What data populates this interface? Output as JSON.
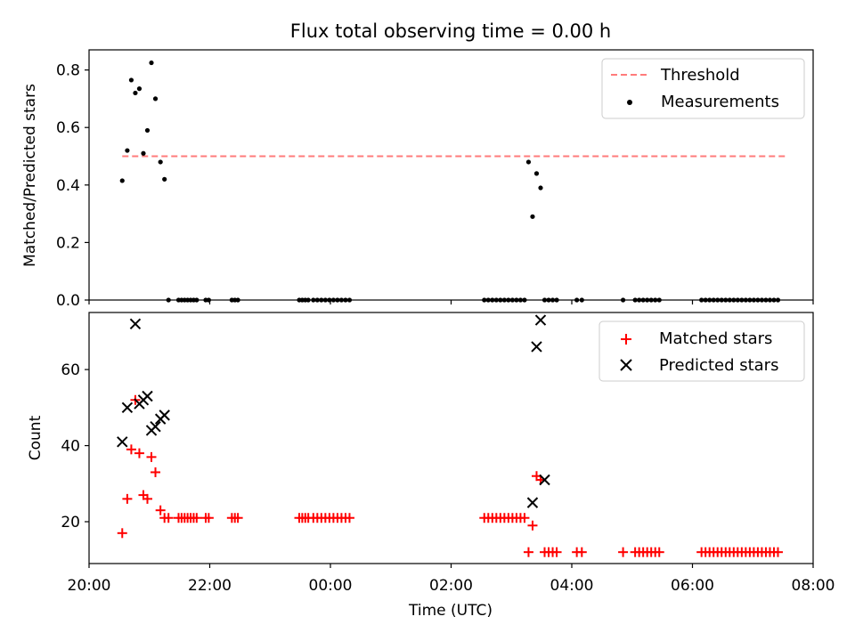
{
  "title": "Flux total observing time = 0.00 h",
  "chart_data": [
    {
      "type": "scatter",
      "ylabel": "Matched/Predicted stars",
      "xlim": [
        "20:00",
        "08:00"
      ],
      "ylim": [
        0,
        0.87
      ],
      "yticks": [
        0.0,
        0.2,
        0.4,
        0.6,
        0.8
      ],
      "ytick_labels": [
        "0.0",
        "0.2",
        "0.4",
        "0.6",
        "0.8"
      ],
      "legend": {
        "position": "top-right",
        "entries": [
          "Threshold",
          "Measurements"
        ]
      },
      "threshold": {
        "name": "Threshold",
        "value": 0.5,
        "x_start": "20:33",
        "x_end": "07:33",
        "color": "#ff7b7b"
      },
      "series": [
        {
          "name": "Measurements",
          "color": "#000000",
          "x": [
            "20:33",
            "20:38",
            "20:42",
            "20:46",
            "20:50",
            "20:54",
            "20:58",
            "21:02",
            "21:06",
            "21:11",
            "21:15",
            "21:19",
            "21:29",
            "21:32",
            "21:35",
            "21:38",
            "21:41",
            "21:44",
            "21:47",
            "21:56",
            "21:59",
            "22:22",
            "22:25",
            "22:28",
            "23:29",
            "23:32",
            "23:35",
            "23:38",
            "23:43",
            "23:47",
            "23:51",
            "23:55",
            "23:59",
            "00:03",
            "00:07",
            "00:11",
            "00:15",
            "00:19",
            "02:33",
            "02:37",
            "02:41",
            "02:45",
            "02:49",
            "02:53",
            "02:57",
            "03:01",
            "03:05",
            "03:09",
            "03:13",
            "03:17",
            "03:21",
            "03:25",
            "03:29",
            "03:33",
            "03:37",
            "03:41",
            "03:45",
            "04:05",
            "04:10",
            "04:51",
            "05:03",
            "05:07",
            "05:11",
            "05:15",
            "05:19",
            "05:23",
            "05:27",
            "06:09",
            "06:13",
            "06:17",
            "06:21",
            "06:25",
            "06:29",
            "06:33",
            "06:37",
            "06:41",
            "06:45",
            "06:49",
            "06:53",
            "06:57",
            "07:01",
            "07:05",
            "07:09",
            "07:13",
            "07:17",
            "07:21",
            "07:25"
          ],
          "y": [
            0.415,
            0.52,
            0.765,
            0.72,
            0.735,
            0.51,
            0.59,
            0.825,
            0.7,
            0.48,
            0.42,
            0,
            0,
            0,
            0,
            0,
            0,
            0,
            0,
            0,
            0,
            0,
            0,
            0,
            0,
            0,
            0,
            0,
            0,
            0,
            0,
            0,
            0,
            0,
            0,
            0,
            0,
            0,
            0,
            0,
            0,
            0,
            0,
            0,
            0,
            0,
            0,
            0,
            0,
            0.48,
            0.29,
            0.44,
            0.39,
            0,
            0,
            0,
            0,
            0,
            0,
            0,
            0,
            0,
            0,
            0,
            0,
            0,
            0,
            0,
            0,
            0,
            0,
            0,
            0,
            0,
            0,
            0,
            0,
            0,
            0,
            0,
            0,
            0,
            0,
            0,
            0,
            0,
            0
          ]
        }
      ]
    },
    {
      "type": "scatter",
      "xlabel": "Time (UTC)",
      "ylabel": "Count",
      "xlim": [
        "20:00",
        "08:00"
      ],
      "ylim": [
        9,
        75
      ],
      "yticks": [
        20,
        40,
        60
      ],
      "ytick_labels": [
        "20",
        "40",
        "60"
      ],
      "xticks": [
        "20:00",
        "22:00",
        "00:00",
        "02:00",
        "04:00",
        "06:00",
        "08:00"
      ],
      "legend": {
        "position": "top-right",
        "entries": [
          "Matched stars",
          "Predicted stars"
        ]
      },
      "series": [
        {
          "name": "Matched stars",
          "marker": "plus",
          "color": "#ff0000",
          "x": [
            "20:33",
            "20:38",
            "20:42",
            "20:46",
            "20:50",
            "20:54",
            "20:58",
            "21:02",
            "21:06",
            "21:11",
            "21:15",
            "21:19",
            "21:29",
            "21:32",
            "21:35",
            "21:38",
            "21:41",
            "21:44",
            "21:47",
            "21:56",
            "21:59",
            "22:22",
            "22:25",
            "22:28",
            "23:29",
            "23:32",
            "23:35",
            "23:38",
            "23:43",
            "23:47",
            "23:51",
            "23:55",
            "23:59",
            "00:03",
            "00:07",
            "00:11",
            "00:15",
            "00:19",
            "02:33",
            "02:37",
            "02:41",
            "02:45",
            "02:49",
            "02:53",
            "02:57",
            "03:01",
            "03:05",
            "03:09",
            "03:13",
            "03:17",
            "03:21",
            "03:25",
            "03:29",
            "03:33",
            "03:37",
            "03:41",
            "03:45",
            "04:05",
            "04:10",
            "04:51",
            "05:03",
            "05:07",
            "05:11",
            "05:15",
            "05:19",
            "05:23",
            "05:27",
            "06:09",
            "06:13",
            "06:17",
            "06:21",
            "06:25",
            "06:29",
            "06:33",
            "06:37",
            "06:41",
            "06:45",
            "06:49",
            "06:53",
            "06:57",
            "07:01",
            "07:05",
            "07:09",
            "07:13",
            "07:17",
            "07:21",
            "07:25"
          ],
          "y": [
            17,
            26,
            39,
            52,
            38,
            27,
            26,
            37,
            33,
            23,
            21,
            21,
            21,
            21,
            21,
            21,
            21,
            21,
            21,
            21,
            21,
            21,
            21,
            21,
            21,
            21,
            21,
            21,
            21,
            21,
            21,
            21,
            21,
            21,
            21,
            21,
            21,
            21,
            21,
            21,
            21,
            21,
            21,
            21,
            21,
            21,
            21,
            21,
            21,
            12,
            19,
            32,
            31,
            12,
            12,
            12,
            12,
            12,
            12,
            12,
            12,
            12,
            12,
            12,
            12,
            12,
            12,
            12,
            12,
            12,
            12,
            12,
            12,
            12,
            12,
            12,
            12,
            12,
            12,
            12,
            12,
            12,
            12,
            12,
            12,
            12,
            12
          ]
        },
        {
          "name": "Predicted stars",
          "marker": "x",
          "color": "#000000",
          "x": [
            "20:33",
            "20:38",
            "20:46",
            "20:50",
            "20:54",
            "20:58",
            "21:02",
            "21:06",
            "21:11",
            "21:15",
            "03:21",
            "03:25",
            "03:29",
            "03:33"
          ],
          "y": [
            41,
            50,
            72,
            51,
            52,
            53,
            44,
            45,
            47,
            48,
            25,
            66,
            73,
            31
          ]
        }
      ]
    }
  ]
}
